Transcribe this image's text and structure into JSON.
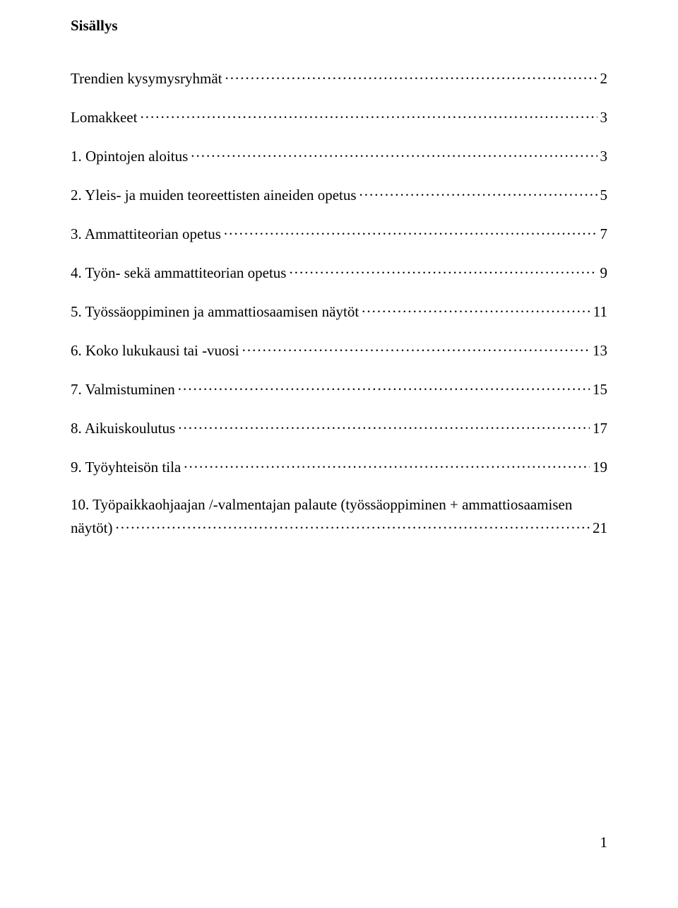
{
  "heading": "Sisällys",
  "toc": [
    {
      "label": "Trendien kysymysryhmät",
      "page": "2"
    },
    {
      "label": "Lomakkeet",
      "page": "3"
    },
    {
      "label": "1. Opintojen aloitus",
      "page": "3"
    },
    {
      "label": "2. Yleis- ja muiden teoreettisten aineiden opetus",
      "page": "5"
    },
    {
      "label": "3. Ammattiteorian opetus",
      "page": "7"
    },
    {
      "label": "4. Työn- sekä ammattiteorian opetus",
      "page": "9"
    },
    {
      "label": "5. Työssäoppiminen ja ammattiosaamisen näytöt",
      "page": "11"
    },
    {
      "label": "6. Koko lukukausi tai -vuosi",
      "page": "13"
    },
    {
      "label": "7. Valmistuminen",
      "page": "15"
    },
    {
      "label": "8. Aikuiskoulutus",
      "page": "17"
    },
    {
      "label": "9. Työyhteisön tila",
      "page": "19"
    },
    {
      "label_line1": "10. Työpaikkaohjaajan /-valmentajan palaute (työssäoppiminen + ammattiosaamisen",
      "label_line2": "näytöt)",
      "page": "21"
    }
  ],
  "page_number": "1",
  "style": {
    "font_family": "Times New Roman",
    "font_size_pt": 16,
    "text_color": "#000000",
    "background_color": "#ffffff",
    "leader_char": "."
  }
}
